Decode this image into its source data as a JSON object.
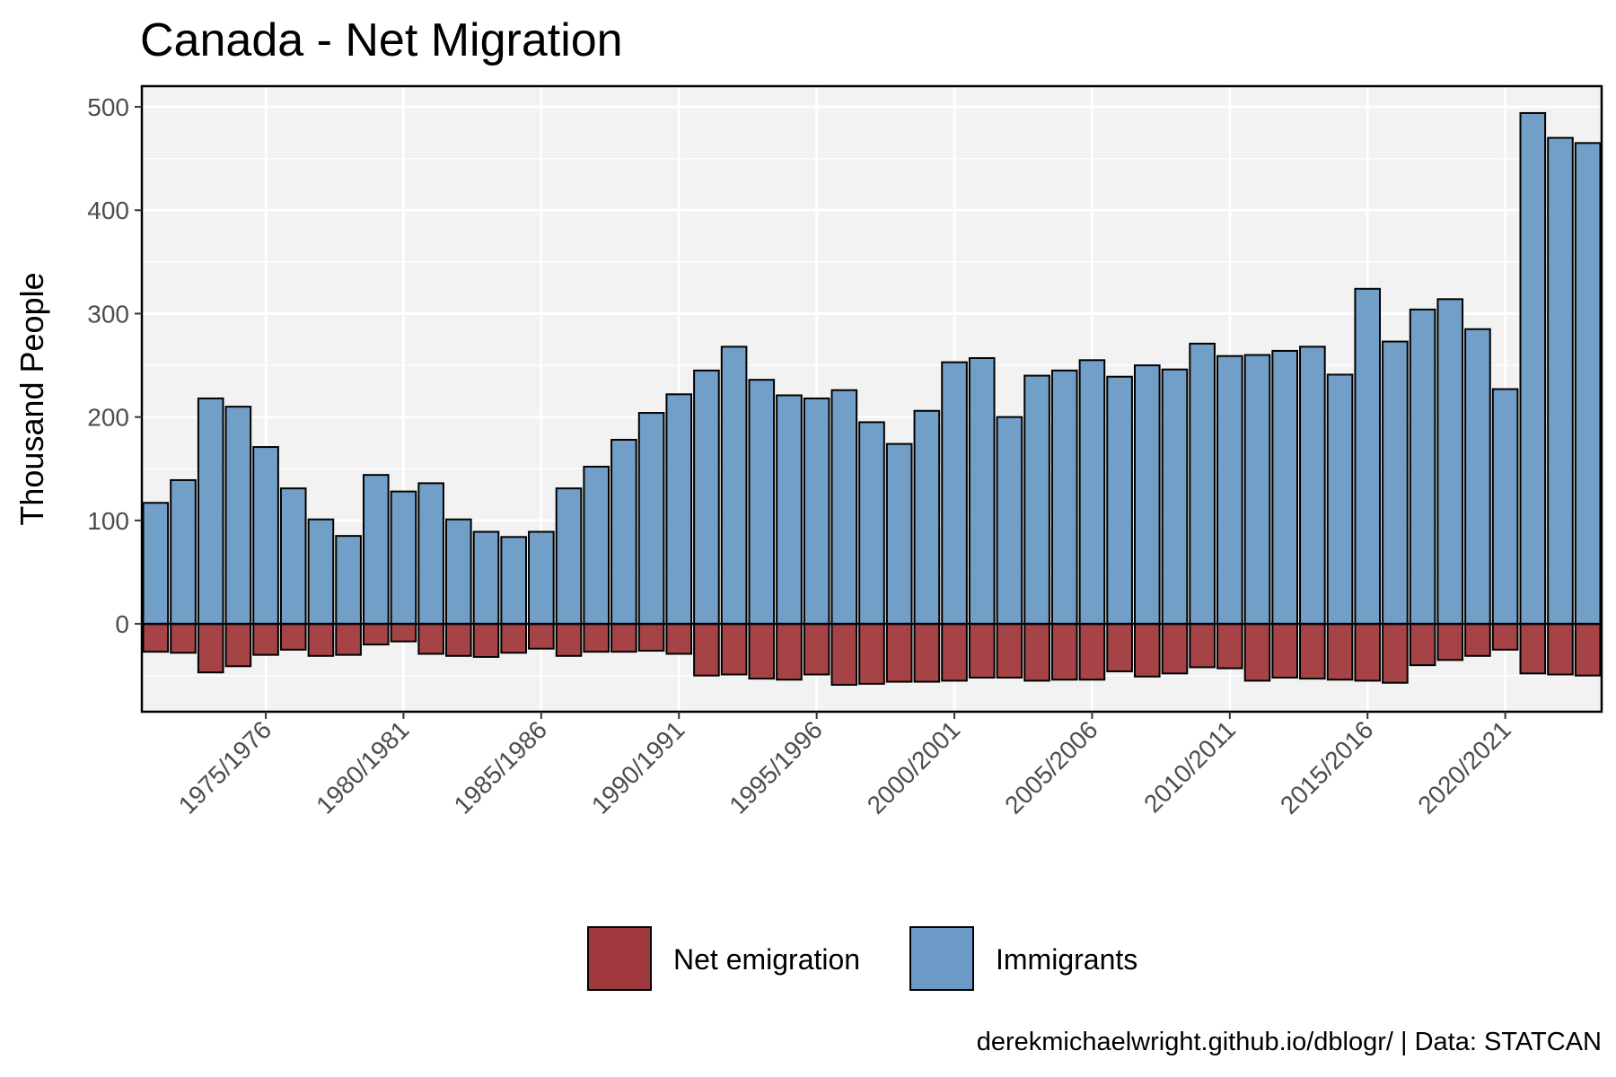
{
  "chart_data": {
    "type": "bar",
    "title": "Canada - Net Migration",
    "xlabel": "",
    "ylabel": "Thousand People",
    "caption": "derekmichaelwright.github.io/dblogr/ | Data: STATCAN",
    "ylim": [
      -85,
      520
    ],
    "yticks": [
      0,
      100,
      200,
      300,
      400,
      500
    ],
    "xtick_labels": [
      "1975/1976",
      "1980/1981",
      "1985/1986",
      "1990/1991",
      "1995/1996",
      "2000/2001",
      "2005/2006",
      "2010/2011",
      "2015/2016",
      "2020/2021"
    ],
    "xtick_positions": [
      "1975/1976",
      "1980/1981",
      "1985/1986",
      "1990/1991",
      "1995/1996",
      "2000/2001",
      "2005/2006",
      "2010/2011",
      "2015/2016",
      "2020/2021"
    ],
    "categories": [
      "1971/1972",
      "1972/1973",
      "1973/1974",
      "1974/1975",
      "1975/1976",
      "1976/1977",
      "1977/1978",
      "1978/1979",
      "1979/1980",
      "1980/1981",
      "1981/1982",
      "1982/1983",
      "1983/1984",
      "1984/1985",
      "1985/1986",
      "1986/1987",
      "1987/1988",
      "1988/1989",
      "1989/1990",
      "1990/1991",
      "1991/1992",
      "1992/1993",
      "1993/1994",
      "1994/1995",
      "1995/1996",
      "1996/1997",
      "1997/1998",
      "1998/1999",
      "1999/2000",
      "2000/2001",
      "2001/2002",
      "2002/2003",
      "2003/2004",
      "2004/2005",
      "2005/2006",
      "2006/2007",
      "2007/2008",
      "2008/2009",
      "2009/2010",
      "2010/2011",
      "2011/2012",
      "2012/2013",
      "2013/2014",
      "2014/2015",
      "2015/2016",
      "2016/2017",
      "2017/2018",
      "2018/2019",
      "2019/2020",
      "2020/2021",
      "2021/2022",
      "2022/2023",
      "2023/2024"
    ],
    "series": [
      {
        "name": "Net emigration",
        "color": "#a0393d",
        "values": [
          -27,
          -28,
          -47,
          -41,
          -30,
          -25,
          -31,
          -30,
          -20,
          -17,
          -29,
          -31,
          -32,
          -28,
          -24,
          -31,
          -27,
          -27,
          -26,
          -29,
          -50,
          -49,
          -53,
          -54,
          -49,
          -59,
          -58,
          -56,
          -56,
          -55,
          -52,
          -52,
          -55,
          -54,
          -54,
          -46,
          -51,
          -48,
          -42,
          -43,
          -55,
          -52,
          -53,
          -54,
          -55,
          -57,
          -40,
          -35,
          -31,
          -25,
          -48,
          -49,
          -50
        ]
      },
      {
        "name": "Immigrants",
        "color": "#6a9ac5",
        "values": [
          117,
          139,
          218,
          210,
          171,
          131,
          101,
          85,
          144,
          128,
          136,
          101,
          89,
          84,
          89,
          131,
          152,
          178,
          204,
          222,
          245,
          268,
          236,
          221,
          218,
          226,
          195,
          174,
          206,
          253,
          257,
          200,
          240,
          245,
          255,
          239,
          250,
          246,
          271,
          259,
          260,
          264,
          268,
          241,
          324,
          273,
          304,
          314,
          285,
          227,
          494,
          470,
          465
        ]
      }
    ],
    "grid": true,
    "legend_position": "bottom"
  }
}
